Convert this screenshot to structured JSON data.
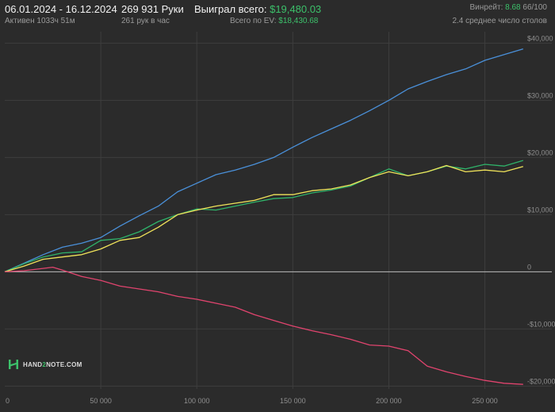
{
  "header": {
    "date_range": "06.01.2024 - 16.12.2024",
    "active_time": "Активен 1033ч 51м",
    "hands_count": "269 931 Руки",
    "hands_per_hour": "261 рук в час",
    "won_label": "Выиграл всего:",
    "won_value": "$19,480.03",
    "ev_label": "Всего по EV:",
    "ev_value": "$18,430.68",
    "winrate_label": "Винрейт:",
    "winrate_value": "8.68",
    "winrate_suffix": "66/100",
    "tables_avg": "2.4 среднее число столов"
  },
  "logo": {
    "text_left": "HAND",
    "text_mid": "2",
    "text_right": "NOTE.COM"
  },
  "colors": {
    "background": "#2b2b2b",
    "grid": "#3e3e3e",
    "zero_line": "#bdbdbd",
    "won": "#4a90d9",
    "green": "#2fb36a",
    "yellow": "#f0e35a",
    "red": "#e0446e",
    "accent": "#3cc06a"
  },
  "chart_data": {
    "type": "line",
    "x_ticks": [
      {
        "value": 0,
        "label": "0"
      },
      {
        "value": 50000,
        "label": "50 000"
      },
      {
        "value": 100000,
        "label": "100 000"
      },
      {
        "value": 150000,
        "label": "150 000"
      },
      {
        "value": 200000,
        "label": "200 000"
      },
      {
        "value": 250000,
        "label": "250 000"
      }
    ],
    "y_ticks": [
      {
        "value": 40000,
        "label": "$40,000"
      },
      {
        "value": 30000,
        "label": "$30,000"
      },
      {
        "value": 20000,
        "label": "$20,000"
      },
      {
        "value": 10000,
        "label": "$10,000"
      },
      {
        "value": 0,
        "label": "0"
      },
      {
        "value": -10000,
        "label": "-$10,000"
      },
      {
        "value": -20000,
        "label": "-$20,000"
      }
    ],
    "xlim": [
      0,
      270000
    ],
    "ylim": [
      -20500,
      42000
    ],
    "grid": true,
    "series": [
      {
        "color": "#4a90d9",
        "x": [
          0,
          10000,
          20000,
          30000,
          40000,
          50000,
          60000,
          70000,
          80000,
          90000,
          100000,
          110000,
          120000,
          130000,
          140000,
          150000,
          160000,
          170000,
          180000,
          190000,
          200000,
          210000,
          220000,
          230000,
          240000,
          250000,
          260000,
          269931
        ],
        "y": [
          0,
          1500,
          3000,
          4300,
          5000,
          6000,
          8000,
          9800,
          11500,
          14000,
          15500,
          17000,
          17800,
          18800,
          20000,
          21800,
          23500,
          25000,
          26500,
          28200,
          30000,
          32000,
          33300,
          34500,
          35500,
          37000,
          38000,
          39000
        ]
      },
      {
        "color": "#2fb36a",
        "x": [
          0,
          10000,
          20000,
          30000,
          40000,
          50000,
          60000,
          70000,
          80000,
          90000,
          100000,
          110000,
          120000,
          130000,
          140000,
          150000,
          160000,
          170000,
          180000,
          190000,
          200000,
          210000,
          220000,
          230000,
          240000,
          250000,
          260000,
          269931
        ],
        "y": [
          0,
          1400,
          2600,
          3300,
          3500,
          5500,
          5800,
          7000,
          8800,
          10000,
          11000,
          10800,
          11500,
          12200,
          12800,
          13000,
          13800,
          14300,
          15000,
          16500,
          18000,
          16800,
          17500,
          18500,
          18000,
          18800,
          18500,
          19480
        ]
      },
      {
        "color": "#f0e35a",
        "x": [
          0,
          10000,
          20000,
          30000,
          40000,
          50000,
          60000,
          70000,
          80000,
          90000,
          100000,
          110000,
          120000,
          130000,
          140000,
          150000,
          160000,
          170000,
          180000,
          190000,
          200000,
          210000,
          220000,
          230000,
          240000,
          250000,
          260000,
          269931
        ],
        "y": [
          0,
          1000,
          2200,
          2600,
          3000,
          4000,
          5500,
          6000,
          7800,
          10000,
          10800,
          11500,
          12000,
          12500,
          13500,
          13500,
          14200,
          14500,
          15200,
          16500,
          17500,
          16800,
          17500,
          18600,
          17500,
          17800,
          17500,
          18430
        ]
      },
      {
        "color": "#e0446e",
        "x": [
          0,
          10000,
          20000,
          25000,
          30000,
          40000,
          50000,
          60000,
          70000,
          80000,
          90000,
          100000,
          110000,
          120000,
          130000,
          140000,
          150000,
          160000,
          170000,
          180000,
          190000,
          200000,
          210000,
          220000,
          230000,
          240000,
          250000,
          260000,
          269931
        ],
        "y": [
          0,
          200,
          600,
          800,
          300,
          -800,
          -1500,
          -2500,
          -3000,
          -3500,
          -4300,
          -4800,
          -5500,
          -6200,
          -7500,
          -8500,
          -9500,
          -10300,
          -11000,
          -11800,
          -12800,
          -13000,
          -13800,
          -16500,
          -17500,
          -18300,
          -19000,
          -19500,
          -19700
        ]
      }
    ]
  }
}
